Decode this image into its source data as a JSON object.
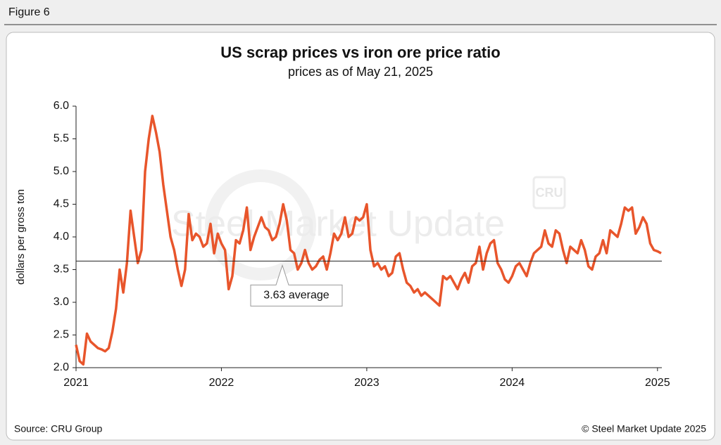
{
  "figure_label": "Figure 6",
  "source": "Source: CRU Group",
  "copyright": "© Steel Market Update 2025",
  "watermark": "Steel Market Update",
  "watermark_logo": "CRU",
  "chart_data": {
    "type": "line",
    "title": "US scrap prices vs iron ore price ratio",
    "subtitle": "prices as of May 21, 2025",
    "y_label": "dollars per gross ton",
    "color": "#e8552b",
    "xlim": [
      2021,
      2025.03
    ],
    "xticks": [
      2021,
      2022,
      2023,
      2024,
      2025
    ],
    "ylim": [
      2,
      6
    ],
    "yticks": [
      {
        "value": 2,
        "label": "2.0"
      },
      {
        "value": 2.5,
        "label": "2.5"
      },
      {
        "value": 3,
        "label": "3.0"
      },
      {
        "value": 3.5,
        "label": "3.5"
      },
      {
        "value": 4,
        "label": "4.0"
      },
      {
        "value": 4.5,
        "label": "4.5"
      },
      {
        "value": 5,
        "label": "5.0"
      },
      {
        "value": 5.5,
        "label": "5.5"
      },
      {
        "value": 6,
        "label": "6.0"
      }
    ],
    "average": {
      "value": 3.63,
      "label": "3.63 average"
    },
    "x": [
      2021,
      2021.025,
      2021.05,
      2021.075,
      2021.1,
      2021.125,
      2021.15,
      2021.175,
      2021.2,
      2021.225,
      2021.25,
      2021.275,
      2021.3,
      2021.325,
      2021.35,
      2021.375,
      2021.4,
      2021.425,
      2021.45,
      2021.475,
      2021.5,
      2021.525,
      2021.55,
      2021.575,
      2021.6,
      2021.625,
      2021.65,
      2021.675,
      2021.7,
      2021.725,
      2021.75,
      2021.775,
      2021.8,
      2021.825,
      2021.85,
      2021.875,
      2021.9,
      2021.925,
      2021.95,
      2021.975,
      2022,
      2022.025,
      2022.05,
      2022.075,
      2022.1,
      2022.125,
      2022.15,
      2022.175,
      2022.2,
      2022.225,
      2022.25,
      2022.275,
      2022.3,
      2022.325,
      2022.35,
      2022.375,
      2022.4,
      2022.425,
      2022.45,
      2022.475,
      2022.5,
      2022.525,
      2022.55,
      2022.575,
      2022.6,
      2022.625,
      2022.65,
      2022.675,
      2022.7,
      2022.725,
      2022.75,
      2022.775,
      2022.8,
      2022.825,
      2022.85,
      2022.875,
      2022.9,
      2022.925,
      2022.95,
      2022.975,
      2023,
      2023.025,
      2023.05,
      2023.075,
      2023.1,
      2023.125,
      2023.15,
      2023.175,
      2023.2,
      2023.225,
      2023.25,
      2023.275,
      2023.3,
      2023.325,
      2023.35,
      2023.375,
      2023.4,
      2023.425,
      2023.45,
      2023.475,
      2023.5,
      2023.525,
      2023.55,
      2023.575,
      2023.6,
      2023.625,
      2023.65,
      2023.675,
      2023.7,
      2023.725,
      2023.75,
      2023.775,
      2023.8,
      2023.825,
      2023.85,
      2023.875,
      2023.9,
      2023.925,
      2023.95,
      2023.975,
      2024,
      2024.025,
      2024.05,
      2024.075,
      2024.1,
      2024.125,
      2024.15,
      2024.175,
      2024.2,
      2024.225,
      2024.25,
      2024.275,
      2024.3,
      2024.325,
      2024.35,
      2024.375,
      2024.4,
      2024.425,
      2024.45,
      2024.475,
      2024.5,
      2024.525,
      2024.55,
      2024.575,
      2024.6,
      2024.625,
      2024.65,
      2024.675,
      2024.7,
      2024.725,
      2024.75,
      2024.775,
      2024.8,
      2024.825,
      2024.85,
      2024.875,
      2024.9,
      2024.925,
      2024.95,
      2024.975,
      2025,
      2025.025
    ],
    "values": [
      2.35,
      2.1,
      2.05,
      2.52,
      2.4,
      2.35,
      2.3,
      2.28,
      2.25,
      2.3,
      2.55,
      2.9,
      3.5,
      3.15,
      3.6,
      4.4,
      4.0,
      3.6,
      3.8,
      5.0,
      5.5,
      5.85,
      5.6,
      5.3,
      4.8,
      4.4,
      4.0,
      3.8,
      3.5,
      3.25,
      3.5,
      4.35,
      3.95,
      4.05,
      4.0,
      3.85,
      3.9,
      4.2,
      3.75,
      4.05,
      3.9,
      3.8,
      3.2,
      3.4,
      3.95,
      3.9,
      4.1,
      4.45,
      3.8,
      4.0,
      4.15,
      4.3,
      4.15,
      4.1,
      3.95,
      4.0,
      4.2,
      4.5,
      4.25,
      3.8,
      3.75,
      3.5,
      3.6,
      3.8,
      3.6,
      3.5,
      3.55,
      3.65,
      3.7,
      3.5,
      3.75,
      4.05,
      3.95,
      4.05,
      4.3,
      4.0,
      4.05,
      4.3,
      4.25,
      4.3,
      4.5,
      3.8,
      3.55,
      3.6,
      3.5,
      3.55,
      3.4,
      3.45,
      3.7,
      3.75,
      3.5,
      3.3,
      3.25,
      3.15,
      3.2,
      3.1,
      3.15,
      3.1,
      3.05,
      3.0,
      2.95,
      3.4,
      3.35,
      3.4,
      3.3,
      3.2,
      3.35,
      3.45,
      3.3,
      3.55,
      3.6,
      3.85,
      3.5,
      3.75,
      3.9,
      3.95,
      3.6,
      3.5,
      3.35,
      3.3,
      3.4,
      3.55,
      3.6,
      3.5,
      3.4,
      3.6,
      3.75,
      3.8,
      3.85,
      4.1,
      3.9,
      3.85,
      4.1,
      4.05,
      3.8,
      3.6,
      3.85,
      3.8,
      3.75,
      3.95,
      3.8,
      3.55,
      3.5,
      3.7,
      3.75,
      3.95,
      3.75,
      4.1,
      4.05,
      4.0,
      4.2,
      4.45,
      4.4,
      4.45,
      4.05,
      4.15,
      4.3,
      4.2,
      3.9,
      3.8,
      3.78,
      3.75
    ]
  }
}
